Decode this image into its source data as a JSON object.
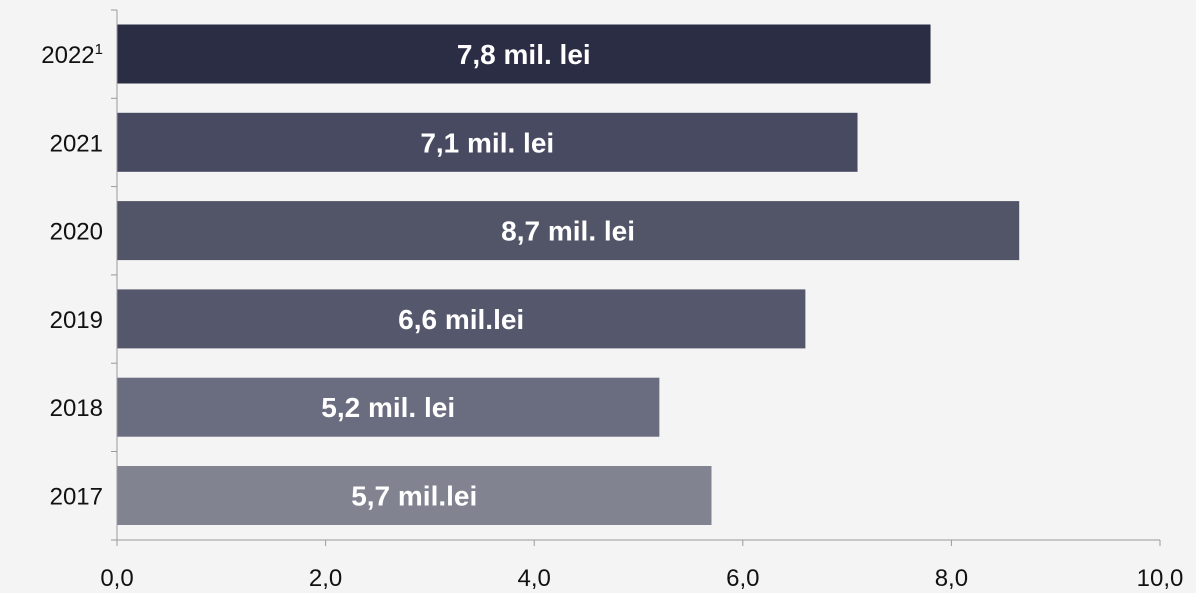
{
  "chart_data": {
    "type": "bar",
    "orientation": "horizontal",
    "title": "",
    "xlabel": "",
    "ylabel": "",
    "xlim": [
      0,
      10
    ],
    "x_ticks": [
      0,
      2,
      4,
      6,
      8,
      10
    ],
    "x_tick_labels": [
      "0,0",
      "2,0",
      "4,0",
      "6,0",
      "8,0",
      "10,0"
    ],
    "grid": false,
    "legend": "none",
    "categories": [
      "2022",
      "2021",
      "2020",
      "2019",
      "2018",
      "2017"
    ],
    "category_superscripts": [
      "1",
      "",
      "",
      "",
      "",
      ""
    ],
    "values": [
      7.8,
      7.1,
      8.65,
      6.6,
      5.2,
      5.7
    ],
    "data_labels": [
      "7,8 mil. lei",
      "7,1 mil. lei",
      "8,7 mil. lei",
      "6,6 mil.lei",
      "5,2 mil. lei",
      "5,7 mil.lei"
    ],
    "bar_colors": [
      "#2b2d45",
      "#474a61",
      "#525468",
      "#55576c",
      "#6a6c7f",
      "#818390"
    ]
  }
}
